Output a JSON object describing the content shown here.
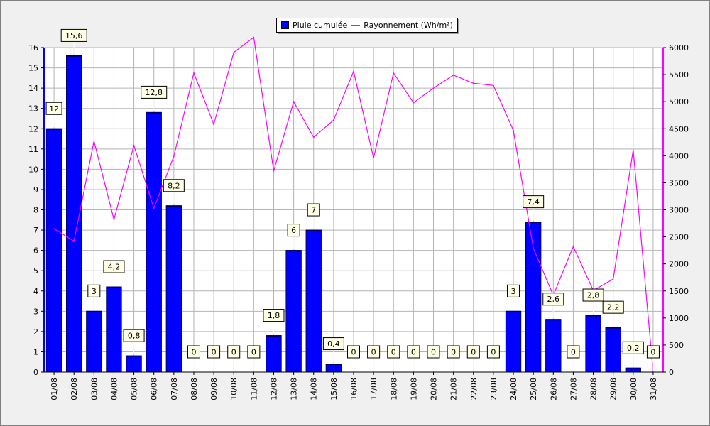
{
  "colors": {
    "bar": "#0000ff",
    "line": "#ff00ff",
    "background": "#f0f0f0",
    "grid": "#b4b4b4",
    "label_bg": "#ffffe6"
  },
  "legend": {
    "rain_label": "Pluie cumulée",
    "radiation_label": "Rayonnement (Wh/m²)"
  },
  "chart_data": {
    "type": "bar",
    "grid": true,
    "legend_position": "top-center",
    "categories": [
      "01/08",
      "02/08",
      "03/08",
      "04/08",
      "05/08",
      "06/08",
      "07/08",
      "08/08",
      "09/08",
      "10/08",
      "11/08",
      "12/08",
      "13/08",
      "14/08",
      "15/08",
      "16/08",
      "17/08",
      "18/08",
      "19/08",
      "20/08",
      "21/08",
      "22/08",
      "23/08",
      "24/08",
      "25/08",
      "26/08",
      "27/08",
      "28/08",
      "29/08",
      "30/08",
      "31/08"
    ],
    "y_left": {
      "min": 0,
      "max": 16,
      "ticks": [
        0,
        1,
        2,
        3,
        4,
        5,
        6,
        7,
        8,
        9,
        10,
        11,
        12,
        13,
        14,
        15,
        16
      ]
    },
    "y_right": {
      "min": 0,
      "max": 6000,
      "ticks": [
        0,
        500,
        1000,
        1500,
        2000,
        2500,
        3000,
        3500,
        4000,
        4500,
        5000,
        5500,
        6000
      ]
    },
    "series": [
      {
        "name": "Pluie cumulée",
        "type": "bar",
        "axis": "left",
        "values": [
          12,
          15.6,
          3,
          4.2,
          0.8,
          12.8,
          8.2,
          0,
          0,
          0,
          0,
          1.8,
          6,
          7,
          0.4,
          0,
          0,
          0,
          0,
          0,
          0,
          0,
          0,
          3,
          7.4,
          2.6,
          0,
          2.8,
          2.2,
          0.2,
          0
        ],
        "labels": [
          "12",
          "15,6",
          "3",
          "4,2",
          "0,8",
          "12,8",
          "8,2",
          "0",
          "0",
          "0",
          "0",
          "1,8",
          "6",
          "7",
          "0,4",
          "0",
          "0",
          "0",
          "0",
          "0",
          "0",
          "0",
          "0",
          "3",
          "7,4",
          "2,6",
          "0",
          "2,8",
          "2,2",
          "0,2",
          "0"
        ]
      },
      {
        "name": "Rayonnement (Wh/m²)",
        "type": "line",
        "axis": "right",
        "values": [
          2650,
          2420,
          4270,
          2820,
          4190,
          3030,
          3990,
          5530,
          4580,
          5910,
          6190,
          3720,
          5000,
          4340,
          4660,
          5560,
          3960,
          5530,
          4980,
          5250,
          5490,
          5340,
          5300,
          4470,
          2290,
          1420,
          2320,
          1510,
          1720,
          4110,
          0
        ]
      }
    ]
  }
}
